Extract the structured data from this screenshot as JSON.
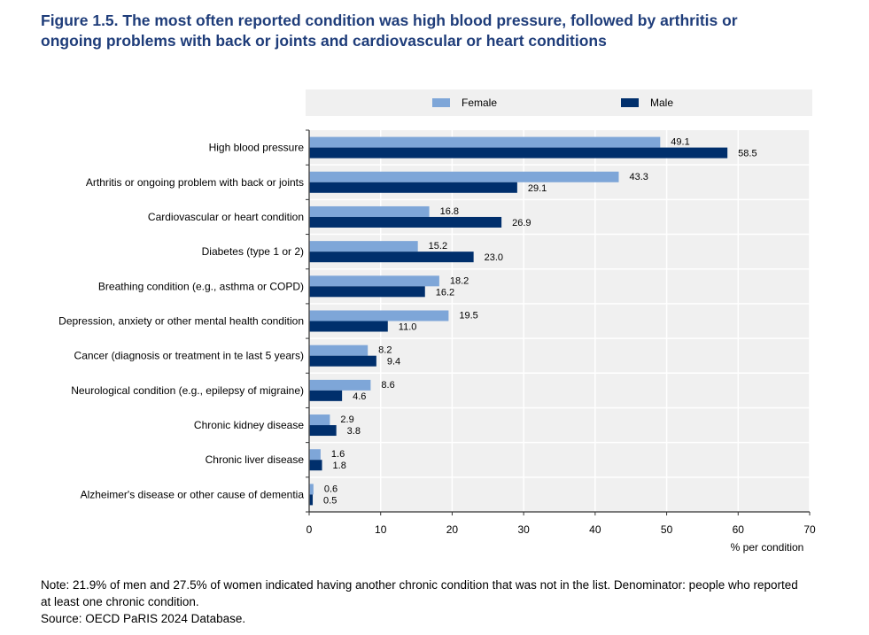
{
  "title": {
    "line1": "Figure 1.5. The most often reported condition was high blood pressure, followed by arthritis or",
    "line2": "ongoing problems with back or joints and cardiovascular or heart conditions"
  },
  "legend": {
    "items": [
      {
        "label": "Female",
        "color": "#7ea6d8"
      },
      {
        "label": "Male",
        "color": "#002f6c"
      }
    ]
  },
  "notes": {
    "note_line1": "Note: 21.9% of men and 27.5% of women indicated having another chronic condition that was not in the list. Denominator: people who reported",
    "note_line2": "at least one chronic condition.",
    "source": "Source: OECD PaRIS 2024 Database."
  },
  "chart_data": {
    "type": "bar",
    "orientation": "horizontal",
    "title": "Figure 1.5. The most often reported condition was high blood pressure, followed by arthritis or ongoing problems with back or joints and cardiovascular or heart conditions",
    "xlabel": "% per condition",
    "ylabel": "",
    "xlim": [
      0,
      70
    ],
    "xticks": [
      0,
      10,
      20,
      30,
      40,
      50,
      60,
      70
    ],
    "grid": true,
    "legend_position": "top",
    "categories": [
      "High blood pressure",
      "Arthritis or ongoing problem with back or joints",
      "Cardiovascular or heart condition",
      "Diabetes (type 1 or 2)",
      "Breathing condition (e.g., asthma or COPD)",
      "Depression, anxiety or other mental health condition",
      "Cancer (diagnosis or treatment in te last 5 years)",
      "Neurological condition (e.g., epilepsy of migraine)",
      "Chronic kidney disease",
      "Chronic liver disease",
      "Alzheimer's disease or other cause of dementia"
    ],
    "series": [
      {
        "name": "Female",
        "color": "#7ea6d8",
        "values": [
          49.1,
          43.3,
          16.8,
          15.2,
          18.2,
          19.5,
          8.2,
          8.6,
          2.9,
          1.6,
          0.6
        ]
      },
      {
        "name": "Male",
        "color": "#002f6c",
        "values": [
          58.5,
          29.1,
          26.9,
          23.0,
          16.2,
          11.0,
          9.4,
          4.6,
          3.8,
          1.8,
          0.5
        ]
      }
    ]
  }
}
